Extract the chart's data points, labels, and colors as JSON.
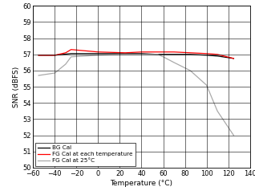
{
  "title": "",
  "xlabel": "Temperature (°C)",
  "ylabel": "SNR (dBFS)",
  "xlim": [
    -60,
    140
  ],
  "ylim": [
    50,
    60
  ],
  "xticks": [
    -60,
    -40,
    -20,
    0,
    20,
    40,
    60,
    80,
    100,
    120,
    140
  ],
  "yticks": [
    50,
    51,
    52,
    53,
    54,
    55,
    56,
    57,
    58,
    59,
    60
  ],
  "bg_cal_x": [
    -55,
    -40,
    -25,
    0,
    25,
    40,
    55,
    70,
    85,
    100,
    110,
    125
  ],
  "bg_cal_y": [
    56.95,
    56.95,
    57.05,
    57.05,
    57.05,
    57.05,
    57.0,
    57.0,
    57.0,
    56.95,
    56.9,
    56.75
  ],
  "fg_each_x": [
    -55,
    -40,
    -30,
    -25,
    0,
    25,
    40,
    55,
    70,
    85,
    100,
    110,
    125
  ],
  "fg_each_y": [
    56.95,
    56.95,
    57.1,
    57.3,
    57.15,
    57.1,
    57.15,
    57.15,
    57.15,
    57.1,
    57.05,
    57.0,
    56.75
  ],
  "fg_25_x": [
    -55,
    -40,
    -30,
    -25,
    0,
    25,
    40,
    55,
    60,
    70,
    85,
    100,
    110,
    125
  ],
  "fg_25_y": [
    55.7,
    55.85,
    56.4,
    56.85,
    56.95,
    57.0,
    57.0,
    57.0,
    56.85,
    56.5,
    56.0,
    55.1,
    53.5,
    52.0
  ],
  "bg_cal_color": "#000000",
  "fg_each_color": "#ff0000",
  "fg_25_color": "#aaaaaa",
  "legend_labels": [
    "BG Cal",
    "FG Cal at each temperature",
    "FG Cal at 25°C"
  ],
  "grid_color": "#000000",
  "background_color": "#ffffff"
}
